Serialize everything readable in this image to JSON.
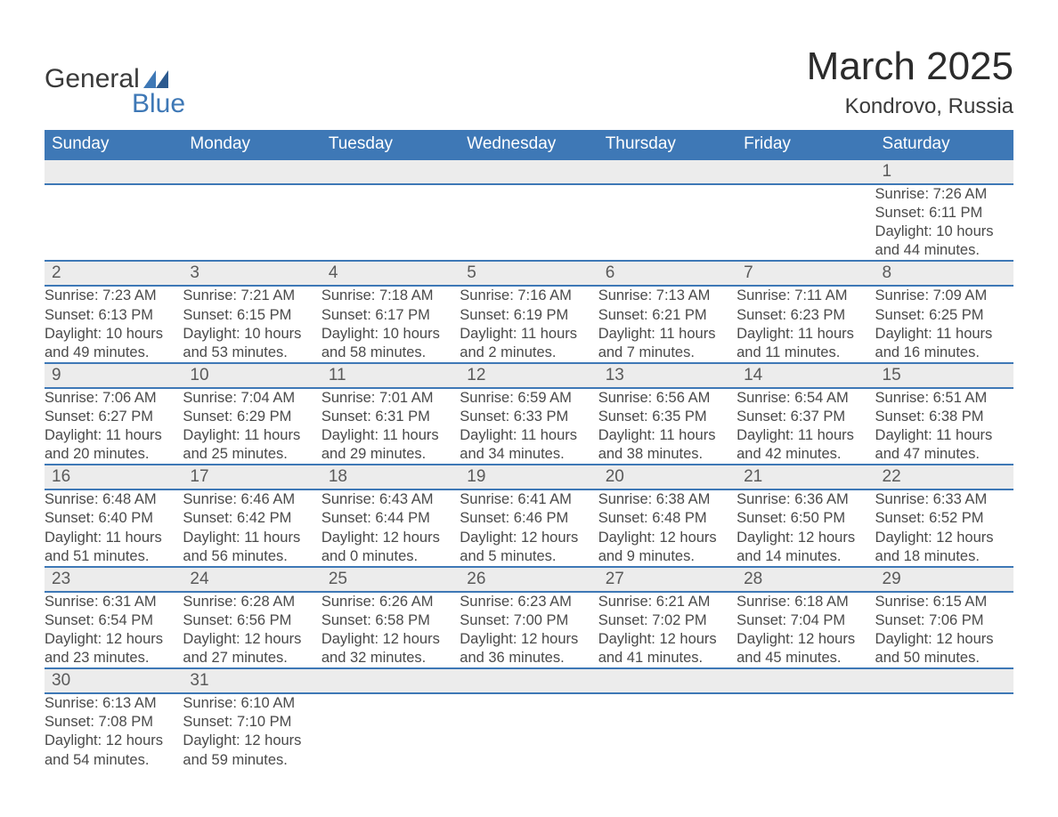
{
  "logo": {
    "text_general": "General",
    "text_blue": "Blue",
    "accent_color": "#3e78b6"
  },
  "title": "March 2025",
  "location": "Kondrovo, Russia",
  "colors": {
    "header_bg": "#3e78b6",
    "header_text": "#ffffff",
    "daynum_bg": "#ececec",
    "border": "#3e78b6",
    "text": "#4a4a4a",
    "background": "#ffffff"
  },
  "typography": {
    "title_fontsize": 44,
    "location_fontsize": 24,
    "header_fontsize": 19,
    "daynum_fontsize": 19,
    "detail_fontsize": 16.5,
    "font_family": "Arial"
  },
  "columns": [
    "Sunday",
    "Monday",
    "Tuesday",
    "Wednesday",
    "Thursday",
    "Friday",
    "Saturday"
  ],
  "labels": {
    "sunrise": "Sunrise",
    "sunset": "Sunset",
    "daylight": "Daylight",
    "hours": "hours",
    "and": "and",
    "minutes": "minutes."
  },
  "weeks": [
    [
      null,
      null,
      null,
      null,
      null,
      null,
      {
        "d": "1",
        "sr": "7:26 AM",
        "ss": "6:11 PM",
        "dh": 10,
        "dm": 44
      }
    ],
    [
      {
        "d": "2",
        "sr": "7:23 AM",
        "ss": "6:13 PM",
        "dh": 10,
        "dm": 49
      },
      {
        "d": "3",
        "sr": "7:21 AM",
        "ss": "6:15 PM",
        "dh": 10,
        "dm": 53
      },
      {
        "d": "4",
        "sr": "7:18 AM",
        "ss": "6:17 PM",
        "dh": 10,
        "dm": 58
      },
      {
        "d": "5",
        "sr": "7:16 AM",
        "ss": "6:19 PM",
        "dh": 11,
        "dm": 2
      },
      {
        "d": "6",
        "sr": "7:13 AM",
        "ss": "6:21 PM",
        "dh": 11,
        "dm": 7
      },
      {
        "d": "7",
        "sr": "7:11 AM",
        "ss": "6:23 PM",
        "dh": 11,
        "dm": 11
      },
      {
        "d": "8",
        "sr": "7:09 AM",
        "ss": "6:25 PM",
        "dh": 11,
        "dm": 16
      }
    ],
    [
      {
        "d": "9",
        "sr": "7:06 AM",
        "ss": "6:27 PM",
        "dh": 11,
        "dm": 20
      },
      {
        "d": "10",
        "sr": "7:04 AM",
        "ss": "6:29 PM",
        "dh": 11,
        "dm": 25
      },
      {
        "d": "11",
        "sr": "7:01 AM",
        "ss": "6:31 PM",
        "dh": 11,
        "dm": 29
      },
      {
        "d": "12",
        "sr": "6:59 AM",
        "ss": "6:33 PM",
        "dh": 11,
        "dm": 34
      },
      {
        "d": "13",
        "sr": "6:56 AM",
        "ss": "6:35 PM",
        "dh": 11,
        "dm": 38
      },
      {
        "d": "14",
        "sr": "6:54 AM",
        "ss": "6:37 PM",
        "dh": 11,
        "dm": 42
      },
      {
        "d": "15",
        "sr": "6:51 AM",
        "ss": "6:38 PM",
        "dh": 11,
        "dm": 47
      }
    ],
    [
      {
        "d": "16",
        "sr": "6:48 AM",
        "ss": "6:40 PM",
        "dh": 11,
        "dm": 51
      },
      {
        "d": "17",
        "sr": "6:46 AM",
        "ss": "6:42 PM",
        "dh": 11,
        "dm": 56
      },
      {
        "d": "18",
        "sr": "6:43 AM",
        "ss": "6:44 PM",
        "dh": 12,
        "dm": 0
      },
      {
        "d": "19",
        "sr": "6:41 AM",
        "ss": "6:46 PM",
        "dh": 12,
        "dm": 5
      },
      {
        "d": "20",
        "sr": "6:38 AM",
        "ss": "6:48 PM",
        "dh": 12,
        "dm": 9
      },
      {
        "d": "21",
        "sr": "6:36 AM",
        "ss": "6:50 PM",
        "dh": 12,
        "dm": 14
      },
      {
        "d": "22",
        "sr": "6:33 AM",
        "ss": "6:52 PM",
        "dh": 12,
        "dm": 18
      }
    ],
    [
      {
        "d": "23",
        "sr": "6:31 AM",
        "ss": "6:54 PM",
        "dh": 12,
        "dm": 23
      },
      {
        "d": "24",
        "sr": "6:28 AM",
        "ss": "6:56 PM",
        "dh": 12,
        "dm": 27
      },
      {
        "d": "25",
        "sr": "6:26 AM",
        "ss": "6:58 PM",
        "dh": 12,
        "dm": 32
      },
      {
        "d": "26",
        "sr": "6:23 AM",
        "ss": "7:00 PM",
        "dh": 12,
        "dm": 36
      },
      {
        "d": "27",
        "sr": "6:21 AM",
        "ss": "7:02 PM",
        "dh": 12,
        "dm": 41
      },
      {
        "d": "28",
        "sr": "6:18 AM",
        "ss": "7:04 PM",
        "dh": 12,
        "dm": 45
      },
      {
        "d": "29",
        "sr": "6:15 AM",
        "ss": "7:06 PM",
        "dh": 12,
        "dm": 50
      }
    ],
    [
      {
        "d": "30",
        "sr": "6:13 AM",
        "ss": "7:08 PM",
        "dh": 12,
        "dm": 54
      },
      {
        "d": "31",
        "sr": "6:10 AM",
        "ss": "7:10 PM",
        "dh": 12,
        "dm": 59
      },
      null,
      null,
      null,
      null,
      null
    ]
  ]
}
